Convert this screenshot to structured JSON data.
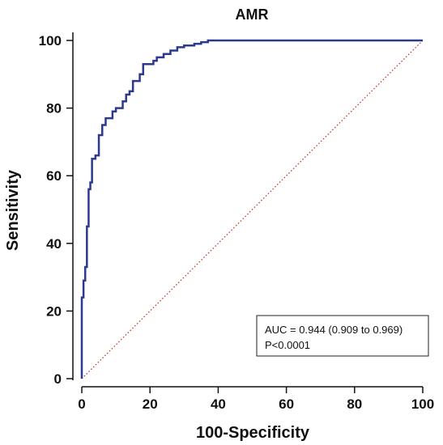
{
  "chart_data": {
    "type": "line",
    "title": "AMR",
    "xlabel": "100-Specificity",
    "ylabel": "Sensitivity",
    "xlim": [
      0,
      100
    ],
    "ylim": [
      0,
      100
    ],
    "xticks": [
      "0",
      "20",
      "40",
      "60",
      "80",
      "100"
    ],
    "yticks": [
      "0",
      "20",
      "40",
      "60",
      "80",
      "100"
    ],
    "grid": false,
    "series": [
      {
        "kind": "roc-curve",
        "color": "#2b3a8f",
        "x": [
          0,
          0,
          0.5,
          0.5,
          1,
          1,
          1.5,
          1.5,
          2,
          2,
          2.5,
          2.5,
          3,
          3,
          4,
          4,
          5,
          5,
          6,
          6,
          7,
          7,
          9,
          9,
          10,
          10,
          12,
          12,
          13,
          13,
          14,
          14,
          15,
          15,
          17,
          17,
          18,
          18,
          21,
          21,
          22,
          22,
          24,
          24,
          26,
          26,
          28,
          28,
          30,
          30,
          33,
          33,
          35,
          35,
          37,
          37,
          100
        ],
        "y": [
          0,
          24,
          24,
          29,
          29,
          33,
          33,
          45,
          45,
          56,
          56,
          58,
          58,
          65,
          65,
          66,
          66,
          72,
          72,
          75,
          75,
          77,
          77,
          79,
          79,
          80,
          80,
          82,
          82,
          84,
          84,
          85,
          85,
          88,
          88,
          90,
          90,
          93,
          93,
          94,
          94,
          95,
          95,
          96,
          96,
          97,
          97,
          98,
          98,
          98.5,
          98.5,
          99,
          99,
          99.5,
          99.5,
          100,
          100
        ]
      },
      {
        "kind": "reference-diagonal",
        "color": "#c0392b",
        "x": [
          0,
          100
        ],
        "y": [
          0,
          100
        ]
      }
    ],
    "annotation": {
      "line1": "AUC = 0.944 (0.909 to 0.969)",
      "line2": "P<0.0001"
    }
  }
}
